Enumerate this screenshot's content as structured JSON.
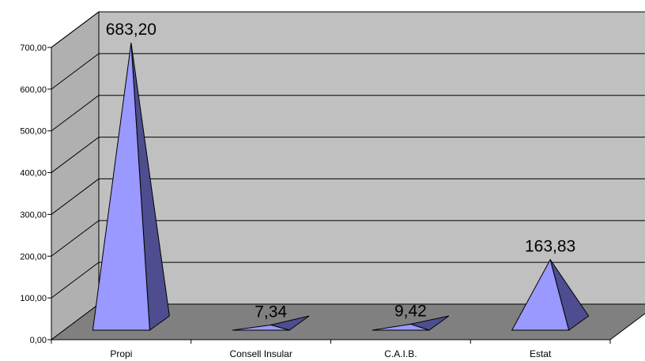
{
  "chart_data": {
    "type": "bar",
    "bar_shape": "pyramid-3d",
    "categories": [
      "Propi",
      "Consell Insular",
      "C.A.I.B.",
      "Estat"
    ],
    "values": [
      683.2,
      7.34,
      9.42,
      163.83
    ],
    "data_labels": [
      "683,20",
      "7,34",
      "9,42",
      "163,83"
    ],
    "y_ticks": [
      "0,00",
      "100,00",
      "200,00",
      "300,00",
      "400,00",
      "500,00",
      "600,00",
      "700,00"
    ],
    "ylim": [
      0,
      700
    ],
    "grid": true,
    "legend": "none",
    "colors": {
      "bar_front": "#9999ff",
      "bar_side": "#4d4d8f",
      "back_wall": "#c0c0c0",
      "floor": "#808080",
      "side_wall": "#b0b0b0"
    }
  }
}
